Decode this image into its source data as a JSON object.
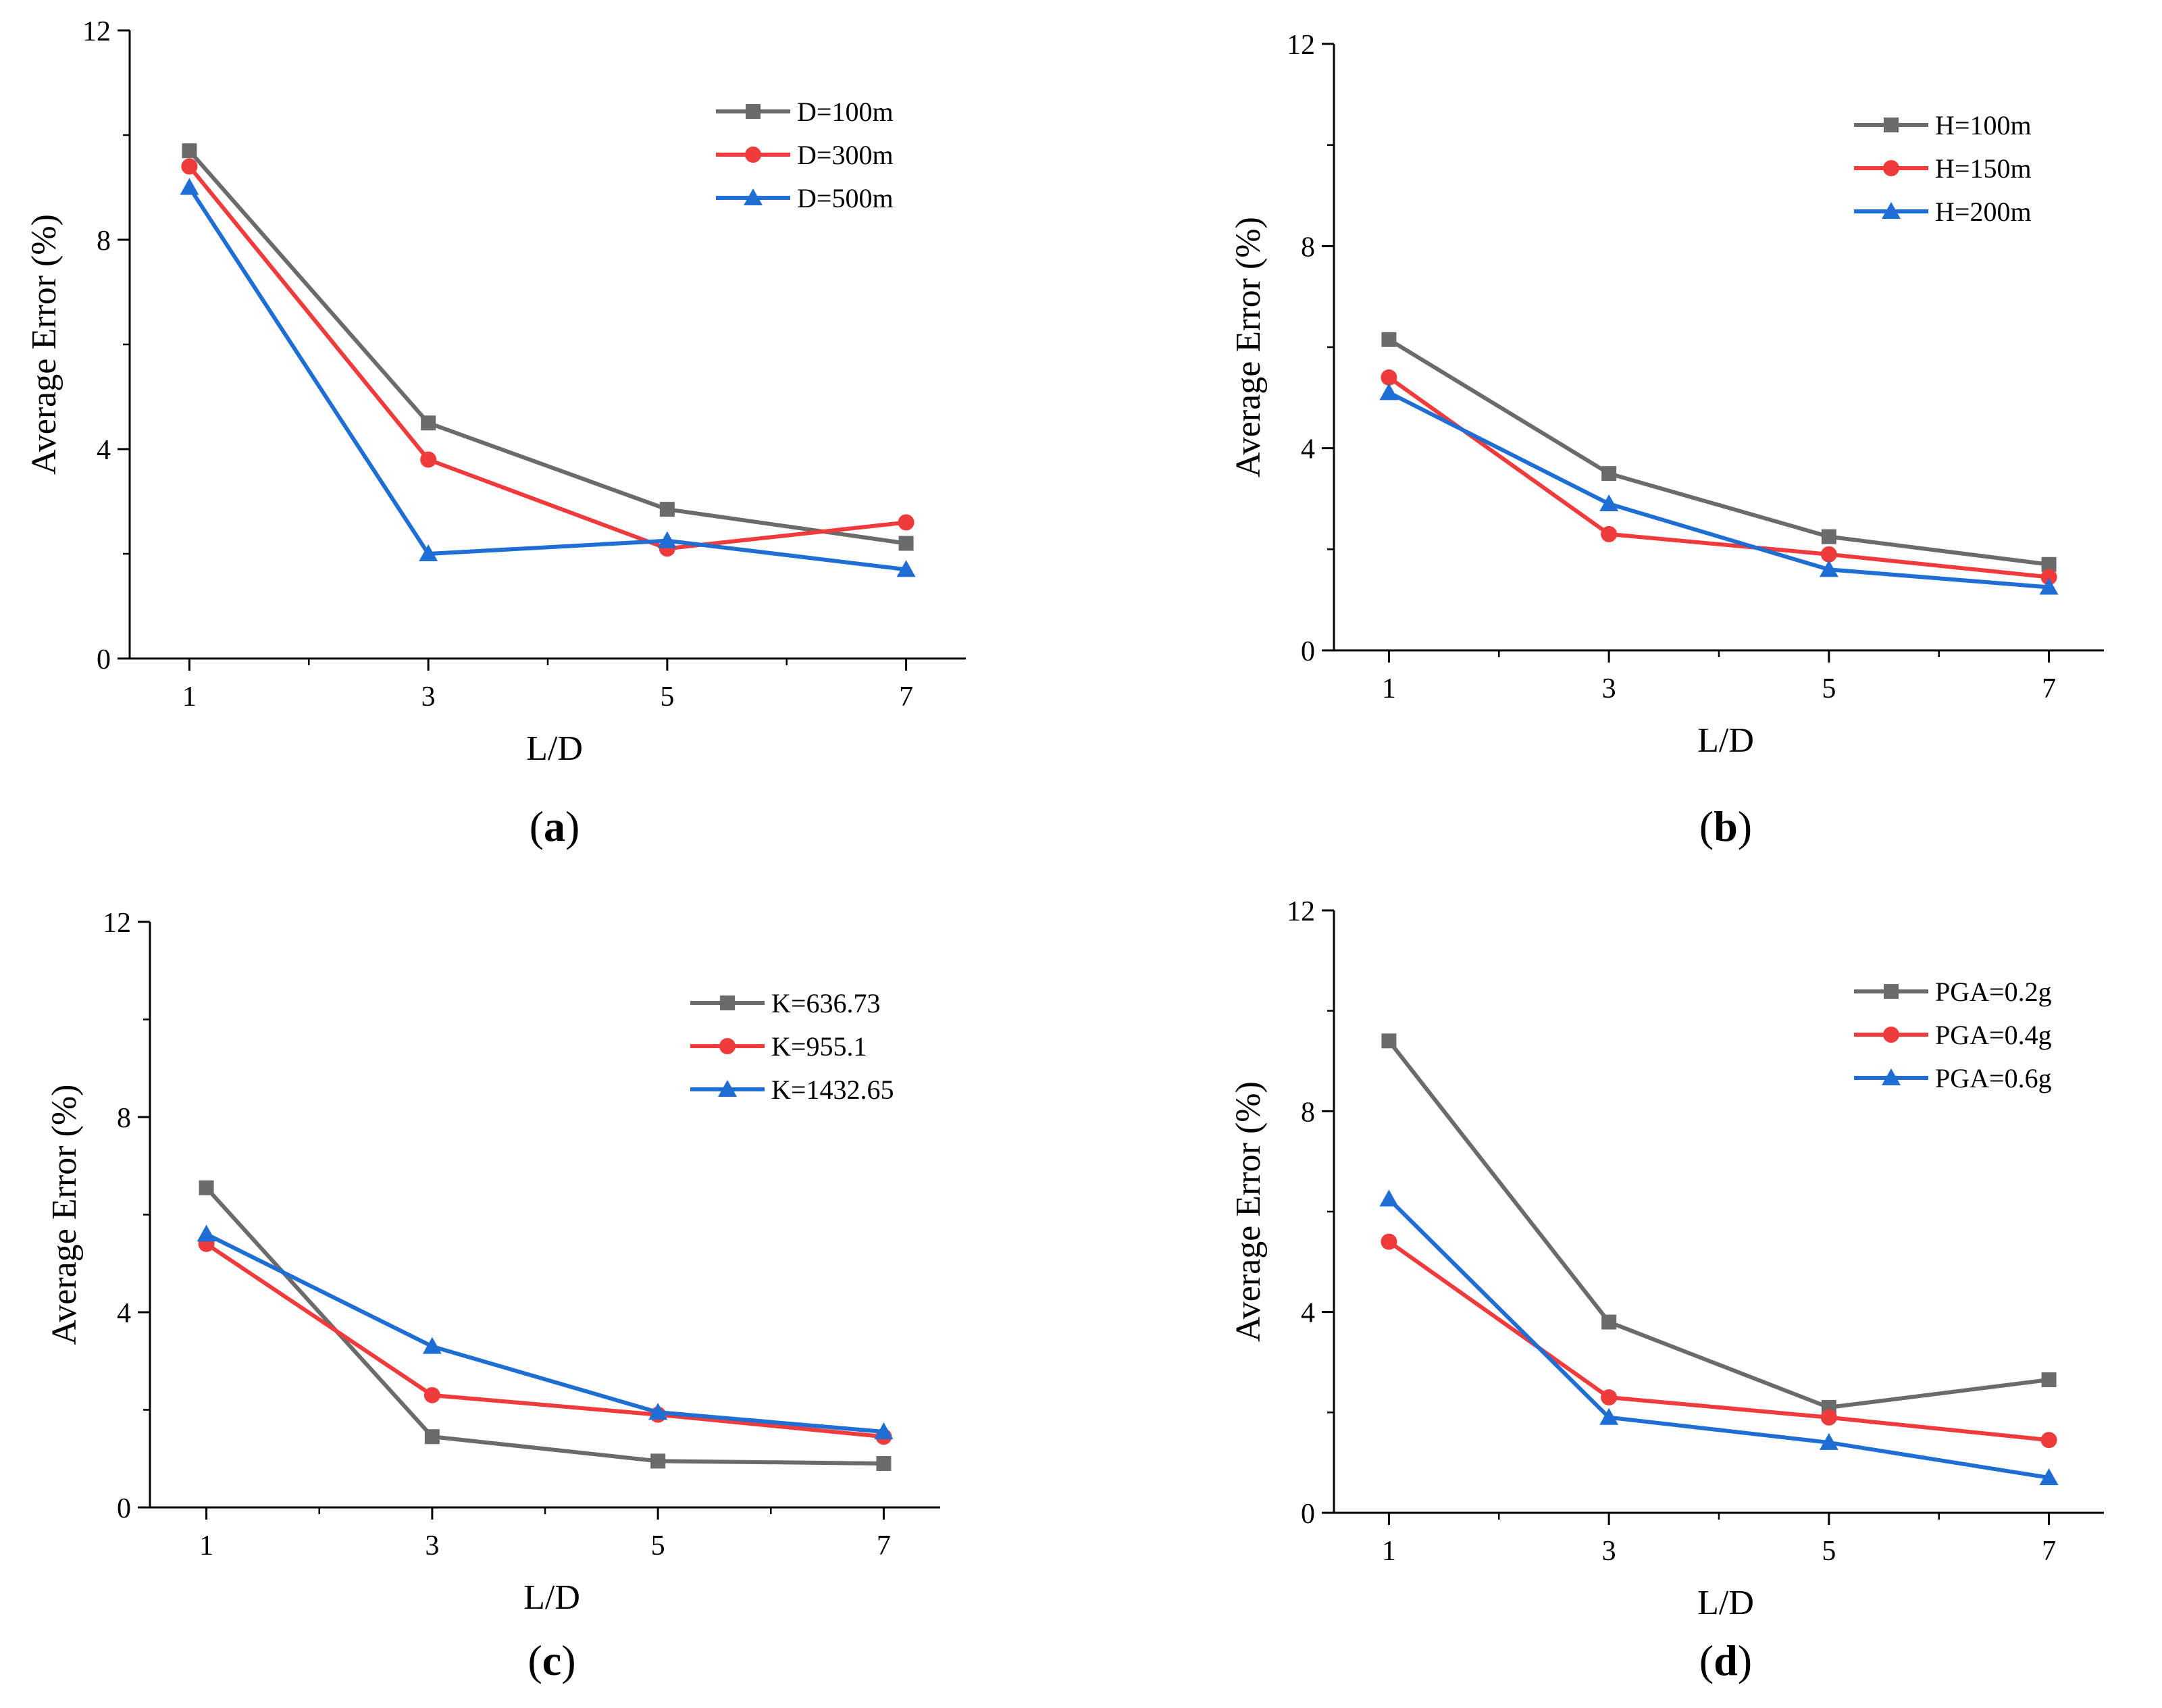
{
  "chart_data": [
    {
      "type": "line",
      "panel_label": "a",
      "xlabel": "L/D",
      "ylabel": "Average Error (%)",
      "x": [
        1,
        3,
        5,
        7
      ],
      "x_ticks": [
        "1",
        "3",
        "5",
        "7"
      ],
      "y_ticks": [
        "0",
        "4",
        "8",
        "12"
      ],
      "xlim": [
        0.5,
        7.5
      ],
      "ylim": [
        0,
        12
      ],
      "legend_position": "top-right",
      "series": [
        {
          "name": "D=100m",
          "color": "#6b6b6b",
          "marker": "square",
          "values": [
            9.7,
            4.5,
            2.85,
            2.2
          ]
        },
        {
          "name": "D=300m",
          "color": "#ef3b3b",
          "marker": "circle",
          "values": [
            9.4,
            3.8,
            2.1,
            2.6
          ]
        },
        {
          "name": "D=500m",
          "color": "#1f6ed4",
          "marker": "triangle",
          "values": [
            9.0,
            2.0,
            2.25,
            1.7
          ]
        }
      ]
    },
    {
      "type": "line",
      "panel_label": "b",
      "xlabel": "L/D",
      "ylabel": "Average Error (%)",
      "x": [
        1,
        3,
        5,
        7
      ],
      "x_ticks": [
        "1",
        "3",
        "5",
        "7"
      ],
      "y_ticks": [
        "0",
        "4",
        "8",
        "12"
      ],
      "xlim": [
        0.5,
        7.5
      ],
      "ylim": [
        0,
        12
      ],
      "legend_position": "top-right",
      "series": [
        {
          "name": "H=100m",
          "color": "#6b6b6b",
          "marker": "square",
          "values": [
            6.15,
            3.5,
            2.25,
            1.7
          ]
        },
        {
          "name": "H=150m",
          "color": "#ef3b3b",
          "marker": "circle",
          "values": [
            5.4,
            2.3,
            1.9,
            1.45
          ]
        },
        {
          "name": "H=200m",
          "color": "#1f6ed4",
          "marker": "triangle",
          "values": [
            5.1,
            2.9,
            1.6,
            1.25
          ]
        }
      ]
    },
    {
      "type": "line",
      "panel_label": "c",
      "xlabel": "L/D",
      "ylabel": "Average Error (%)",
      "x": [
        1,
        3,
        5,
        7
      ],
      "x_ticks": [
        "1",
        "3",
        "5",
        "7"
      ],
      "y_ticks": [
        "0",
        "4",
        "8",
        "12"
      ],
      "xlim": [
        0.5,
        7.5
      ],
      "ylim": [
        0,
        12
      ],
      "legend_position": "top-right",
      "series": [
        {
          "name": "K=636.73",
          "color": "#6b6b6b",
          "marker": "square",
          "values": [
            6.55,
            1.45,
            0.95,
            0.9
          ]
        },
        {
          "name": "K=955.1",
          "color": "#ef3b3b",
          "marker": "circle",
          "values": [
            5.4,
            2.3,
            1.9,
            1.45
          ]
        },
        {
          "name": "K=1432.65",
          "color": "#1f6ed4",
          "marker": "triangle",
          "values": [
            5.6,
            3.3,
            1.95,
            1.55
          ]
        }
      ]
    },
    {
      "type": "line",
      "panel_label": "d",
      "xlabel": "L/D",
      "ylabel": "Average Error (%)",
      "x": [
        1,
        3,
        5,
        7
      ],
      "x_ticks": [
        "1",
        "3",
        "5",
        "7"
      ],
      "y_ticks": [
        "0",
        "4",
        "8",
        "12"
      ],
      "xlim": [
        0.5,
        7.5
      ],
      "ylim": [
        0,
        12
      ],
      "legend_position": "top-right",
      "series": [
        {
          "name": "PGA=0.2g",
          "color": "#6b6b6b",
          "marker": "square",
          "values": [
            9.4,
            3.8,
            2.1,
            2.65
          ]
        },
        {
          "name": "PGA=0.4g",
          "color": "#ef3b3b",
          "marker": "circle",
          "values": [
            5.4,
            2.3,
            1.9,
            1.45
          ]
        },
        {
          "name": "PGA=0.6g",
          "color": "#1f6ed4",
          "marker": "triangle",
          "values": [
            6.25,
            1.9,
            1.4,
            0.7
          ]
        }
      ]
    }
  ]
}
